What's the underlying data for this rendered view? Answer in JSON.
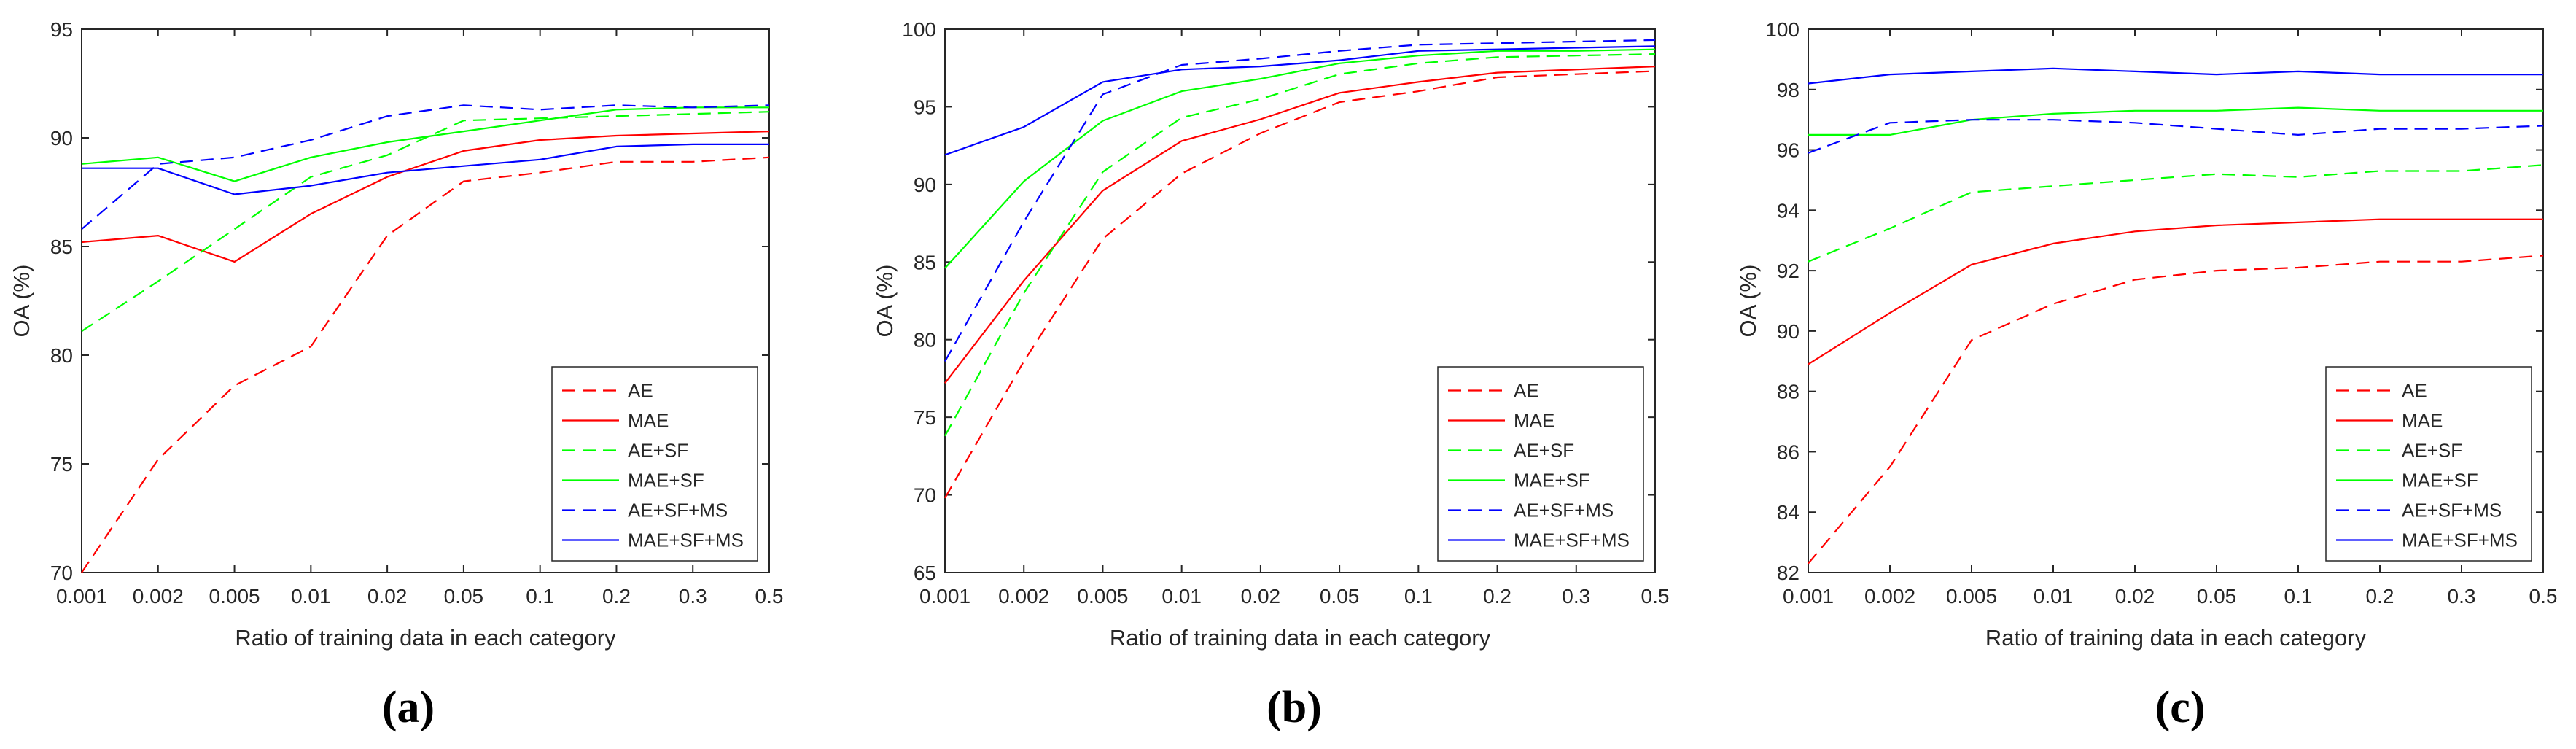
{
  "chart_data": [
    {
      "type": "line",
      "panel_label": "(a)",
      "title": "",
      "xlabel": "Ratio of training data in each category",
      "ylabel": "OA (%)",
      "categories": [
        "0.001",
        "0.002",
        "0.005",
        "0.01",
        "0.02",
        "0.05",
        "0.1",
        "0.2",
        "0.3",
        "0.5"
      ],
      "ylim": [
        70,
        95
      ],
      "yticks": [
        70,
        75,
        80,
        85,
        90,
        95
      ],
      "grid": false,
      "legend_position": "bottom-right",
      "series": [
        {
          "name": "AE",
          "color": "#ff0000",
          "dash": "dashed",
          "values": [
            70.0,
            75.2,
            78.6,
            80.4,
            85.5,
            88.0,
            88.4,
            88.9,
            88.9,
            89.1
          ]
        },
        {
          "name": "MAE",
          "color": "#ff0000",
          "dash": "solid",
          "values": [
            85.2,
            85.5,
            84.3,
            86.5,
            88.2,
            89.4,
            89.9,
            90.1,
            90.2,
            90.3
          ]
        },
        {
          "name": "AE+SF",
          "color": "#00ff00",
          "dash": "dashed",
          "values": [
            81.1,
            83.4,
            85.8,
            88.2,
            89.2,
            90.8,
            90.9,
            91.0,
            91.1,
            91.2
          ]
        },
        {
          "name": "MAE+SF",
          "color": "#00ff00",
          "dash": "solid",
          "values": [
            88.8,
            89.1,
            88.0,
            89.1,
            89.8,
            90.3,
            90.8,
            91.3,
            91.4,
            91.4
          ]
        },
        {
          "name": "AE+SF+MS",
          "color": "#0000ff",
          "dash": "dashed",
          "values": [
            85.8,
            88.8,
            89.1,
            89.9,
            91.0,
            91.5,
            91.3,
            91.5,
            91.4,
            91.5
          ]
        },
        {
          "name": "MAE+SF+MS",
          "color": "#0000ff",
          "dash": "solid",
          "values": [
            88.6,
            88.6,
            87.4,
            87.8,
            88.4,
            88.7,
            89.0,
            89.6,
            89.7,
            89.7
          ]
        }
      ]
    },
    {
      "type": "line",
      "panel_label": "(b)",
      "title": "",
      "xlabel": "Ratio of training data in each category",
      "ylabel": "OA (%)",
      "categories": [
        "0.001",
        "0.002",
        "0.005",
        "0.01",
        "0.02",
        "0.05",
        "0.1",
        "0.2",
        "0.3",
        "0.5"
      ],
      "ylim": [
        65,
        100
      ],
      "yticks": [
        65,
        70,
        75,
        80,
        85,
        90,
        95,
        100
      ],
      "grid": false,
      "legend_position": "bottom-right",
      "series": [
        {
          "name": "AE",
          "color": "#ff0000",
          "dash": "dashed",
          "values": [
            69.8,
            78.6,
            86.5,
            90.7,
            93.3,
            95.3,
            96.0,
            96.9,
            97.1,
            97.3
          ]
        },
        {
          "name": "MAE",
          "color": "#ff0000",
          "dash": "solid",
          "values": [
            77.2,
            83.8,
            89.6,
            92.8,
            94.2,
            95.9,
            96.6,
            97.2,
            97.4,
            97.6
          ]
        },
        {
          "name": "AE+SF",
          "color": "#00ff00",
          "dash": "dashed",
          "values": [
            73.8,
            83.0,
            90.8,
            94.3,
            95.5,
            97.1,
            97.8,
            98.2,
            98.3,
            98.4
          ]
        },
        {
          "name": "MAE+SF",
          "color": "#00ff00",
          "dash": "solid",
          "values": [
            84.6,
            90.2,
            94.1,
            96.0,
            96.8,
            97.8,
            98.3,
            98.6,
            98.6,
            98.7
          ]
        },
        {
          "name": "AE+SF+MS",
          "color": "#0000ff",
          "dash": "dashed",
          "values": [
            78.6,
            87.6,
            95.8,
            97.7,
            98.1,
            98.6,
            99.0,
            99.1,
            99.2,
            99.3
          ]
        },
        {
          "name": "MAE+SF+MS",
          "color": "#0000ff",
          "dash": "solid",
          "values": [
            91.9,
            93.7,
            96.6,
            97.4,
            97.6,
            98.0,
            98.6,
            98.7,
            98.8,
            98.9
          ]
        }
      ]
    },
    {
      "type": "line",
      "panel_label": "(c)",
      "title": "",
      "xlabel": "Ratio of training data in each category",
      "ylabel": "OA (%)",
      "categories": [
        "0.001",
        "0.002",
        "0.005",
        "0.01",
        "0.02",
        "0.05",
        "0.1",
        "0.2",
        "0.3",
        "0.5"
      ],
      "ylim": [
        82,
        100
      ],
      "yticks": [
        82,
        84,
        86,
        88,
        90,
        92,
        94,
        96,
        98,
        100
      ],
      "grid": false,
      "legend_position": "bottom-right",
      "series": [
        {
          "name": "AE",
          "color": "#ff0000",
          "dash": "dashed",
          "values": [
            82.3,
            85.5,
            89.7,
            90.9,
            91.7,
            92.0,
            92.1,
            92.3,
            92.3,
            92.5
          ]
        },
        {
          "name": "MAE",
          "color": "#ff0000",
          "dash": "solid",
          "values": [
            88.9,
            90.6,
            92.2,
            92.9,
            93.3,
            93.5,
            93.6,
            93.7,
            93.7,
            93.7
          ]
        },
        {
          "name": "AE+SF",
          "color": "#00ff00",
          "dash": "dashed",
          "values": [
            92.3,
            93.4,
            94.6,
            94.8,
            95.0,
            95.2,
            95.1,
            95.3,
            95.3,
            95.5
          ]
        },
        {
          "name": "MAE+SF",
          "color": "#00ff00",
          "dash": "solid",
          "values": [
            96.5,
            96.5,
            97.0,
            97.2,
            97.3,
            97.3,
            97.4,
            97.3,
            97.3,
            97.3
          ]
        },
        {
          "name": "AE+SF+MS",
          "color": "#0000ff",
          "dash": "dashed",
          "values": [
            95.9,
            96.9,
            97.0,
            97.0,
            96.9,
            96.7,
            96.5,
            96.7,
            96.7,
            96.8
          ]
        },
        {
          "name": "MAE+SF+MS",
          "color": "#0000ff",
          "dash": "solid",
          "values": [
            98.2,
            98.5,
            98.6,
            98.7,
            98.6,
            98.5,
            98.6,
            98.5,
            98.5,
            98.5
          ]
        }
      ]
    }
  ]
}
